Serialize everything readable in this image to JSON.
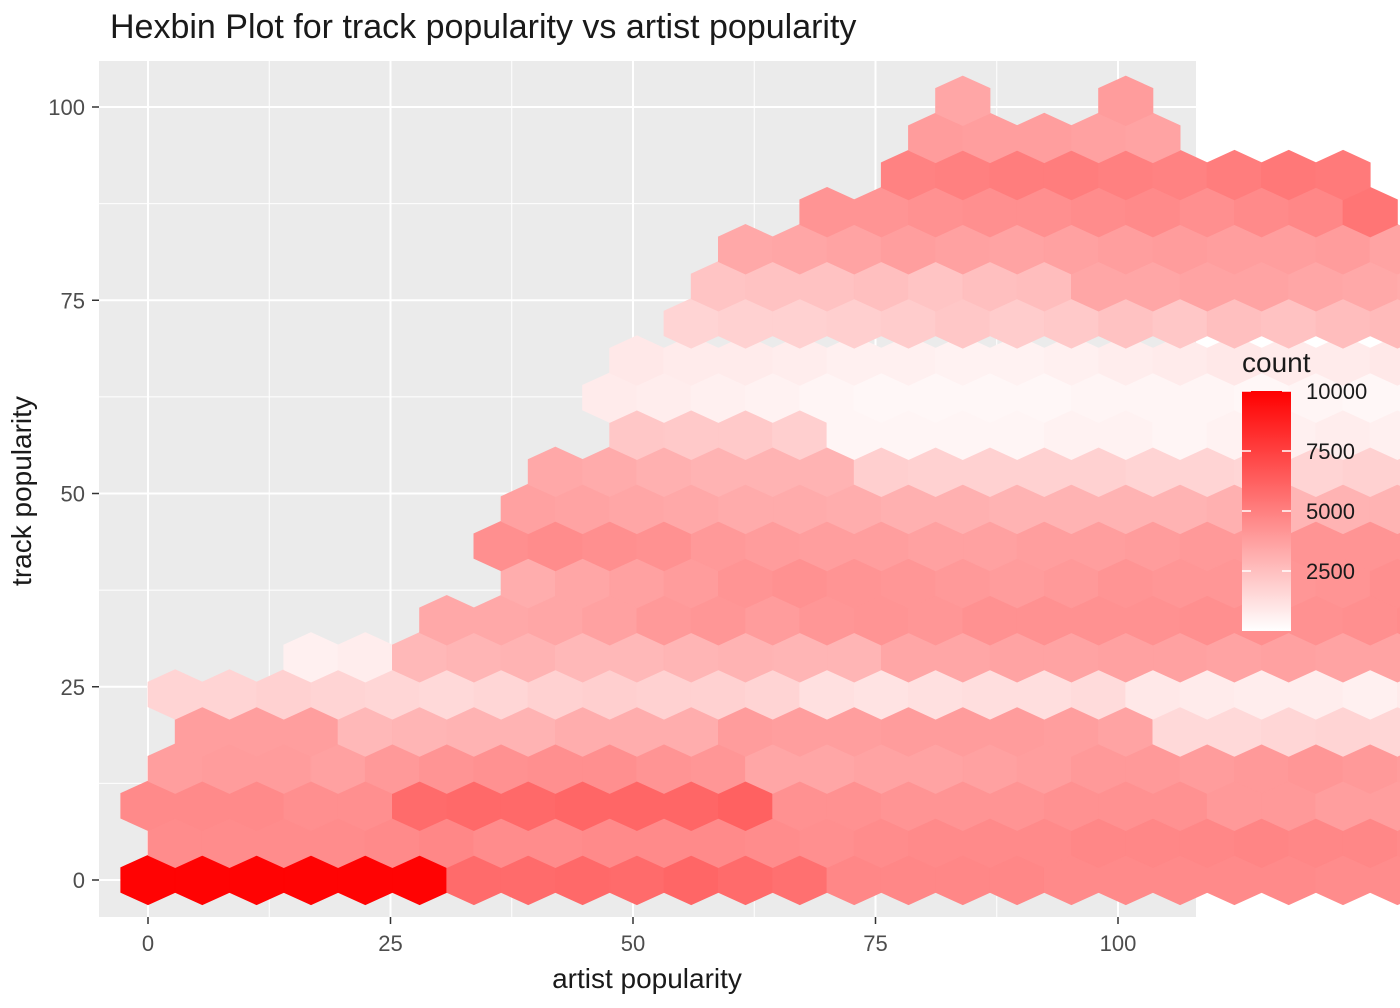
{
  "chart_data": {
    "type": "heatmap",
    "subtype": "hexbin",
    "title": "Hexbin Plot for track popularity vs artist popularity",
    "xlabel": "artist popularity",
    "ylabel": "track popularity",
    "xlim": [
      -10,
      110
    ],
    "ylim": [
      -5,
      106
    ],
    "x_ticks": [
      0,
      25,
      50,
      75,
      100
    ],
    "y_ticks": [
      0,
      25,
      50,
      75,
      100
    ],
    "x_tick_labels": [
      "0",
      "25",
      "50",
      "75",
      "100"
    ],
    "y_tick_labels": [
      "0",
      "25",
      "50",
      "75",
      "100"
    ],
    "grid": true,
    "panel_background": "#ebebeb",
    "gridline_color": "#ffffff",
    "low_color": "#ffffff",
    "high_color": "#ff0000",
    "legend": {
      "title": "count",
      "position": "right",
      "range": [
        0,
        10000
      ],
      "breaks": [
        10000,
        7500,
        5000,
        2500
      ],
      "labels": [
        "10000",
        "7500",
        "5000",
        "2500"
      ]
    },
    "hex_width": 5.6,
    "hex_height": 4.8,
    "rows": [
      {
        "y": 0,
        "x_start": 0,
        "counts": [
          9900,
          9900,
          9900,
          9900,
          9900,
          9900,
          5800,
          5800,
          5900,
          5800,
          6000,
          5800,
          5600,
          4700,
          4700,
          4700,
          4700,
          4600,
          4600,
          4600,
          4600,
          4600,
          4500,
          4500,
          4600
        ]
      },
      {
        "y": 4.8,
        "x_start": 2.8,
        "counts": [
          4500,
          4500,
          4500,
          4500,
          4600,
          4700,
          4500,
          4500,
          4600,
          4600,
          4600,
          4500,
          4400,
          4500,
          4600,
          4600,
          4600,
          4700,
          4700,
          4700,
          4800,
          4700,
          4700,
          4600,
          4800
        ]
      },
      {
        "y": 9.6,
        "x_start": 0,
        "counts": [
          4600,
          4600,
          4600,
          4400,
          4400,
          5800,
          5900,
          5900,
          6000,
          6000,
          6000,
          6200,
          4300,
          4300,
          4200,
          4200,
          4200,
          4300,
          4300,
          4300,
          4000,
          4000,
          3800,
          3800,
          3800,
          4000
        ]
      },
      {
        "y": 14.4,
        "x_start": 2.8,
        "counts": [
          3800,
          3900,
          3900,
          3700,
          4000,
          4200,
          4300,
          4400,
          4400,
          4200,
          4100,
          3500,
          3500,
          3600,
          3600,
          3700,
          3800,
          4000,
          4000,
          3900,
          4000,
          4100,
          4000,
          3900
        ]
      },
      {
        "y": 19.2,
        "x_start": 5.6,
        "counts": [
          3800,
          3800,
          3800,
          2800,
          2900,
          3000,
          3000,
          3200,
          3200,
          3200,
          3900,
          3800,
          3800,
          3900,
          3900,
          3900,
          3800,
          3600,
          1500,
          1500,
          1600,
          1700,
          1600
        ]
      },
      {
        "y": 24,
        "x_start": 2.8,
        "counts": [
          1700,
          1700,
          1800,
          1700,
          1600,
          1500,
          1600,
          1800,
          1900,
          1800,
          1800,
          1700,
          1200,
          1100,
          1200,
          1300,
          1300,
          1400,
          900,
          800,
          700,
          700,
          600,
          800
        ]
      },
      {
        "y": 28.8,
        "x_start": 16.8,
        "counts": [
          600,
          700,
          2800,
          2900,
          3000,
          2800,
          2800,
          2900,
          3000,
          2900,
          2900,
          3500,
          3500,
          3600,
          3600,
          3700,
          3700,
          3600,
          3700,
          3600,
          3600,
          3700
        ]
      },
      {
        "y": 33.6,
        "x_start": 30.8,
        "counts": [
          3400,
          3400,
          3500,
          3700,
          4000,
          4100,
          3900,
          4100,
          4200,
          4100,
          4300,
          4300,
          4300,
          4300,
          4400,
          4400,
          4300,
          4400,
          4500
        ]
      },
      {
        "y": 38.4,
        "x_start": 39.2,
        "counts": [
          3200,
          3500,
          3700,
          3900,
          4200,
          4300,
          4200,
          4100,
          4000,
          3900,
          4000,
          4200,
          4100,
          4100,
          4100,
          4200,
          4400,
          4400,
          4500,
          4600
        ]
      },
      {
        "y": 43.2,
        "x_start": 36.4,
        "counts": [
          4400,
          4500,
          4400,
          4300,
          4000,
          3900,
          3800,
          3800,
          3700,
          3700,
          3800,
          3800,
          3900,
          4000,
          4000,
          4200,
          4200,
          4200,
          4300
        ]
      },
      {
        "y": 48,
        "x_start": 39.2,
        "counts": [
          3700,
          3600,
          3500,
          3400,
          3300,
          3300,
          3200,
          3100,
          3100,
          3000,
          3000,
          3000,
          3000,
          3100,
          2900,
          3000,
          3000,
          2800
        ]
      },
      {
        "y": 52.8,
        "x_start": 42,
        "counts": [
          3400,
          3300,
          3100,
          3000,
          3000,
          3000,
          1900,
          1800,
          1800,
          1800,
          1800,
          1700,
          1700,
          1600,
          1700,
          1800,
          1800,
          1700,
          1800,
          2000
        ]
      },
      {
        "y": 57.6,
        "x_start": 50.4,
        "counts": [
          2200,
          2100,
          2100,
          1900,
          400,
          400,
          400,
          400,
          500,
          500,
          400,
          500,
          600,
          700,
          600,
          500,
          500,
          600
        ]
      },
      {
        "y": 62.4,
        "x_start": 47.6,
        "counts": [
          800,
          700,
          600,
          500,
          400,
          300,
          300,
          300,
          300,
          400,
          400,
          400,
          300,
          400,
          300,
          300,
          300,
          300,
          400,
          500,
          400
        ]
      },
      {
        "y": 67.2,
        "x_start": 50.4,
        "counts": [
          900,
          800,
          800,
          700,
          600,
          600,
          500,
          500,
          600,
          700,
          800,
          900,
          800,
          800,
          900,
          1000,
          1100,
          1000,
          1000
        ]
      },
      {
        "y": 72,
        "x_start": 56,
        "counts": [
          1700,
          1800,
          1800,
          1900,
          2000,
          2200,
          2000,
          2100,
          2400,
          2200,
          2500,
          2400,
          2600,
          2700,
          2600,
          2500,
          2500
        ]
      },
      {
        "y": 76.8,
        "x_start": 58.8,
        "counts": [
          2300,
          2400,
          2400,
          2500,
          2300,
          2500,
          2600,
          3500,
          3500,
          3600,
          3600,
          3500,
          3400,
          3300,
          3300,
          3400
        ]
      },
      {
        "y": 81.6,
        "x_start": 61.6,
        "counts": [
          3400,
          3500,
          3600,
          3800,
          3700,
          3600,
          3700,
          3800,
          3900,
          3800,
          3800,
          3900,
          3600,
          4000
        ]
      },
      {
        "y": 86.4,
        "x_start": 70,
        "counts": [
          4200,
          4200,
          4300,
          4400,
          4400,
          4500,
          4600,
          4400,
          4600,
          4700,
          5400
        ]
      },
      {
        "y": 91.2,
        "x_start": 78.4,
        "counts": [
          4900,
          5000,
          5100,
          5100,
          5000,
          4900,
          5100,
          5300,
          5200
        ]
      },
      {
        "y": 96,
        "x_start": 81.2,
        "counts": [
          3900,
          3800,
          3800,
          3700,
          3600
        ]
      },
      {
        "y": 100.8,
        "x_start": 84,
        "counts": [
          3500
        ]
      },
      {
        "y": 100.8,
        "x_start": 100.8,
        "counts": [
          3900
        ]
      }
    ]
  }
}
